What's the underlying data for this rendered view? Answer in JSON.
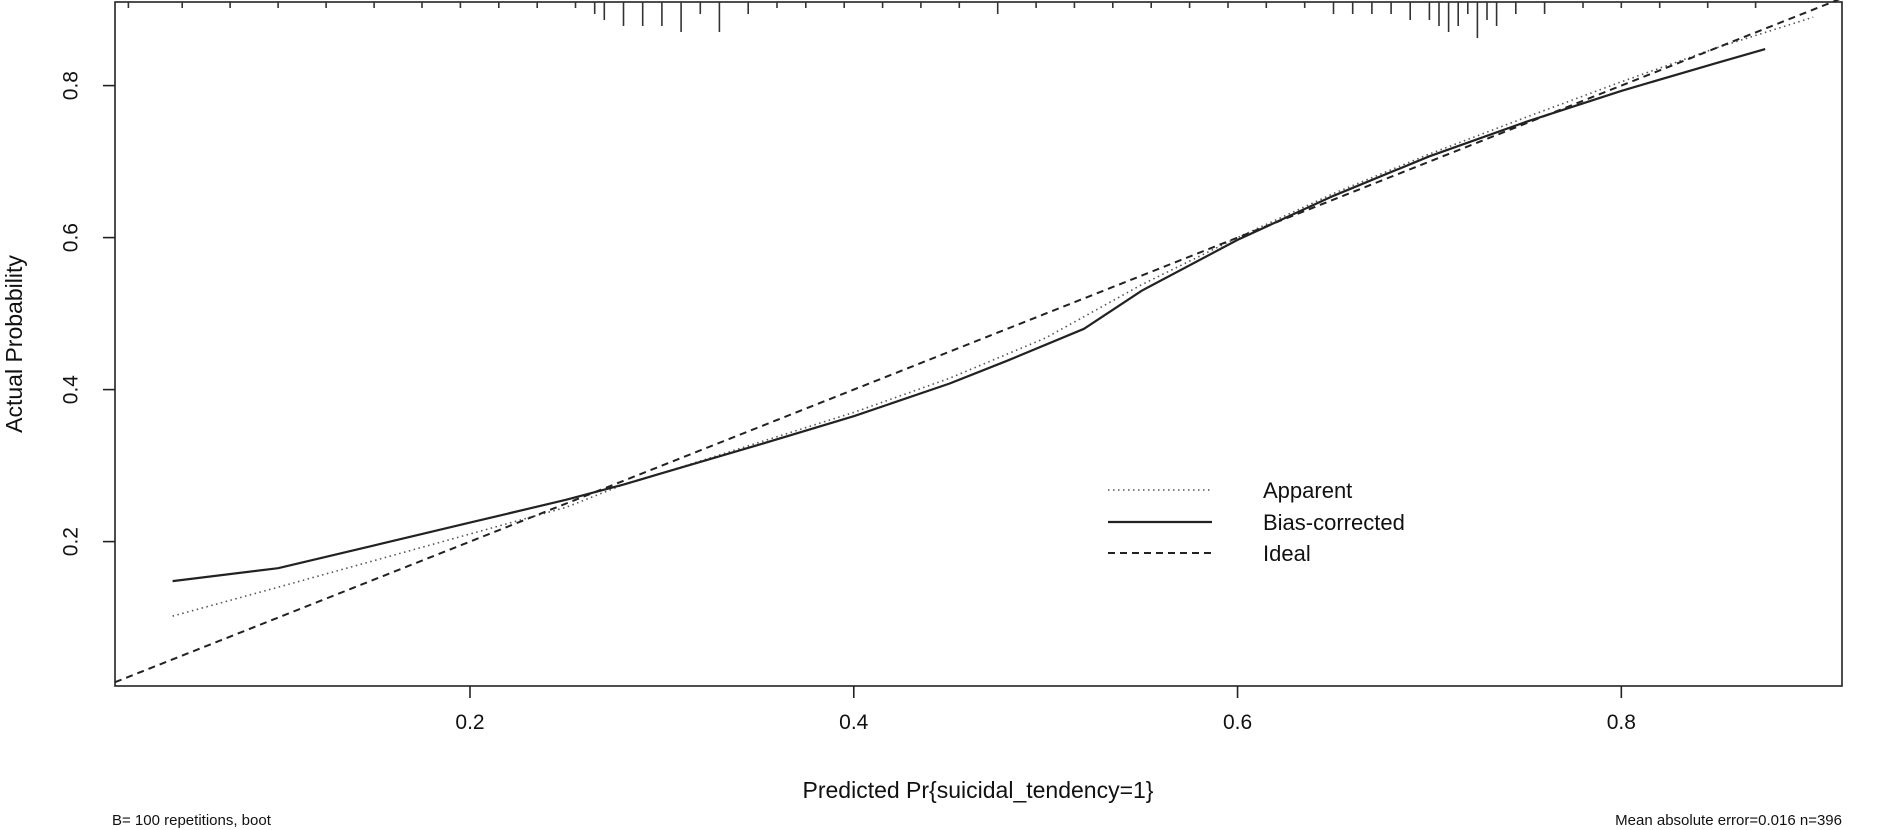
{
  "chart_data": {
    "type": "line",
    "title": "",
    "xlabel": "Predicted Pr{suicidal_tendency=1}",
    "ylabel": "Actual Probability",
    "xlim": [
      0.015,
      0.915
    ],
    "ylim": [
      0.01,
      0.91
    ],
    "x_ticks": [
      0.2,
      0.4,
      0.6,
      0.8
    ],
    "x_tick_labels": [
      "0.2",
      "0.4",
      "0.6",
      "0.8"
    ],
    "y_ticks": [
      0.2,
      0.4,
      0.6,
      0.8
    ],
    "y_tick_labels": [
      "0.2",
      "0.4",
      "0.6",
      "0.8"
    ],
    "grid": false,
    "legend_position": "center-right",
    "series": [
      {
        "name": "Apparent",
        "style": "dotted",
        "color": "#555555",
        "x": [
          0.045,
          0.1,
          0.15,
          0.2,
          0.25,
          0.28,
          0.3,
          0.35,
          0.4,
          0.45,
          0.5,
          0.55,
          0.6,
          0.65,
          0.7,
          0.75,
          0.8,
          0.85,
          0.9
        ],
        "y": [
          0.102,
          0.14,
          0.175,
          0.21,
          0.245,
          0.275,
          0.29,
          0.33,
          0.37,
          0.415,
          0.468,
          0.538,
          0.6,
          0.658,
          0.71,
          0.758,
          0.805,
          0.85,
          0.89
        ]
      },
      {
        "name": "Bias-corrected",
        "style": "solid",
        "color": "#222222",
        "x": [
          0.045,
          0.1,
          0.15,
          0.2,
          0.25,
          0.28,
          0.3,
          0.35,
          0.4,
          0.45,
          0.48,
          0.52,
          0.55,
          0.6,
          0.65,
          0.7,
          0.75,
          0.8,
          0.85,
          0.875
        ],
        "y": [
          0.148,
          0.165,
          0.195,
          0.225,
          0.255,
          0.275,
          0.29,
          0.327,
          0.365,
          0.408,
          0.438,
          0.48,
          0.53,
          0.597,
          0.655,
          0.707,
          0.752,
          0.793,
          0.83,
          0.848
        ]
      },
      {
        "name": "Ideal",
        "style": "dashed",
        "color": "#222222",
        "x": [
          0.015,
          0.915
        ],
        "y": [
          0.015,
          0.915
        ]
      }
    ],
    "rug": [
      {
        "x": 0.022,
        "h": 1
      },
      {
        "x": 0.05,
        "h": 1
      },
      {
        "x": 0.075,
        "h": 1
      },
      {
        "x": 0.1,
        "h": 1
      },
      {
        "x": 0.125,
        "h": 1
      },
      {
        "x": 0.15,
        "h": 1
      },
      {
        "x": 0.175,
        "h": 1
      },
      {
        "x": 0.195,
        "h": 1
      },
      {
        "x": 0.215,
        "h": 1
      },
      {
        "x": 0.235,
        "h": 1
      },
      {
        "x": 0.255,
        "h": 1
      },
      {
        "x": 0.265,
        "h": 2
      },
      {
        "x": 0.27,
        "h": 3
      },
      {
        "x": 0.28,
        "h": 4
      },
      {
        "x": 0.29,
        "h": 4
      },
      {
        "x": 0.3,
        "h": 4
      },
      {
        "x": 0.31,
        "h": 5
      },
      {
        "x": 0.32,
        "h": 2
      },
      {
        "x": 0.33,
        "h": 5
      },
      {
        "x": 0.345,
        "h": 2
      },
      {
        "x": 0.36,
        "h": 1
      },
      {
        "x": 0.375,
        "h": 1
      },
      {
        "x": 0.395,
        "h": 1
      },
      {
        "x": 0.415,
        "h": 1
      },
      {
        "x": 0.435,
        "h": 1
      },
      {
        "x": 0.455,
        "h": 1
      },
      {
        "x": 0.475,
        "h": 2
      },
      {
        "x": 0.495,
        "h": 1
      },
      {
        "x": 0.515,
        "h": 1
      },
      {
        "x": 0.535,
        "h": 1
      },
      {
        "x": 0.555,
        "h": 1
      },
      {
        "x": 0.575,
        "h": 1
      },
      {
        "x": 0.595,
        "h": 1
      },
      {
        "x": 0.615,
        "h": 1
      },
      {
        "x": 0.635,
        "h": 1
      },
      {
        "x": 0.65,
        "h": 2
      },
      {
        "x": 0.66,
        "h": 2
      },
      {
        "x": 0.67,
        "h": 2
      },
      {
        "x": 0.68,
        "h": 2
      },
      {
        "x": 0.69,
        "h": 3
      },
      {
        "x": 0.7,
        "h": 3
      },
      {
        "x": 0.705,
        "h": 4
      },
      {
        "x": 0.71,
        "h": 5
      },
      {
        "x": 0.715,
        "h": 4
      },
      {
        "x": 0.72,
        "h": 2
      },
      {
        "x": 0.725,
        "h": 6
      },
      {
        "x": 0.73,
        "h": 3
      },
      {
        "x": 0.735,
        "h": 4
      },
      {
        "x": 0.745,
        "h": 2
      },
      {
        "x": 0.76,
        "h": 2
      },
      {
        "x": 0.78,
        "h": 1
      },
      {
        "x": 0.8,
        "h": 1
      },
      {
        "x": 0.82,
        "h": 1
      },
      {
        "x": 0.845,
        "h": 1
      },
      {
        "x": 0.87,
        "h": 1
      }
    ],
    "footnote_left": "B= 100 repetitions, boot",
    "footnote_right": "Mean absolute error=0.016 n=396"
  }
}
